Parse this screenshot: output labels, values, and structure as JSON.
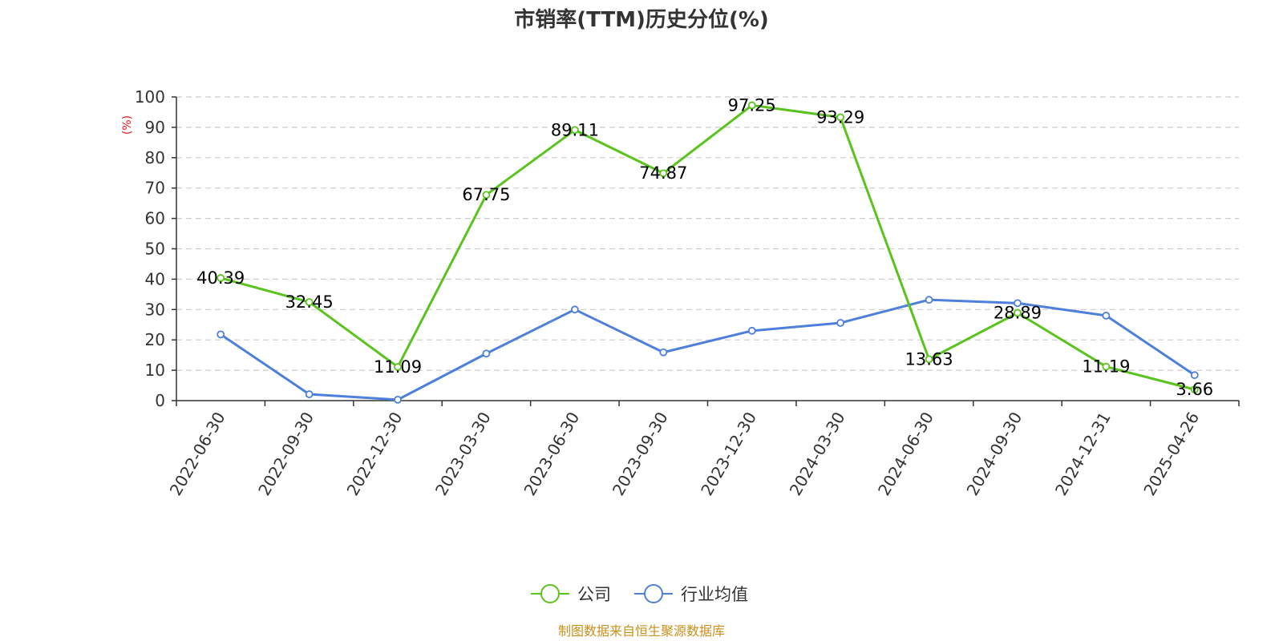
{
  "chart_data": {
    "type": "line",
    "title": "市销率(TTM)历史分位(%)",
    "ylabel": "(%)",
    "xlabel": "",
    "ylim": [
      0,
      100
    ],
    "yticks": [
      0,
      10,
      20,
      30,
      40,
      50,
      60,
      70,
      80,
      90,
      100
    ],
    "categories": [
      "2022-06-30",
      "2022-09-30",
      "2022-12-30",
      "2023-03-30",
      "2023-06-30",
      "2023-09-30",
      "2023-12-30",
      "2024-03-30",
      "2024-06-30",
      "2024-09-30",
      "2024-12-31",
      "2025-04-26"
    ],
    "series": [
      {
        "name": "公司",
        "color": "#5ac31d",
        "values": [
          40.39,
          32.45,
          11.09,
          67.75,
          89.11,
          74.87,
          97.25,
          93.29,
          13.63,
          28.89,
          11.19,
          3.66
        ],
        "labels": [
          "40.39",
          "32.45",
          "11.09",
          "67.75",
          "89.11",
          "74.87",
          "97.25",
          "93.29",
          "13.63",
          "28.89",
          "11.19",
          "3.66"
        ]
      },
      {
        "name": "行业均值",
        "color": "#4e80db",
        "values": [
          21.8,
          2.1,
          0.3,
          15.5,
          30.0,
          15.9,
          23.0,
          25.6,
          33.2,
          32.1,
          28.0,
          8.4
        ]
      }
    ],
    "grid": true,
    "legend_position": "bottom-center"
  },
  "source_text": "制图数据来自恒生聚源数据库",
  "colors": {
    "title": "#333333",
    "ylabel": "#e8161a",
    "source": "#c8901a",
    "grid": "#cccccc",
    "axis": "#333333"
  }
}
